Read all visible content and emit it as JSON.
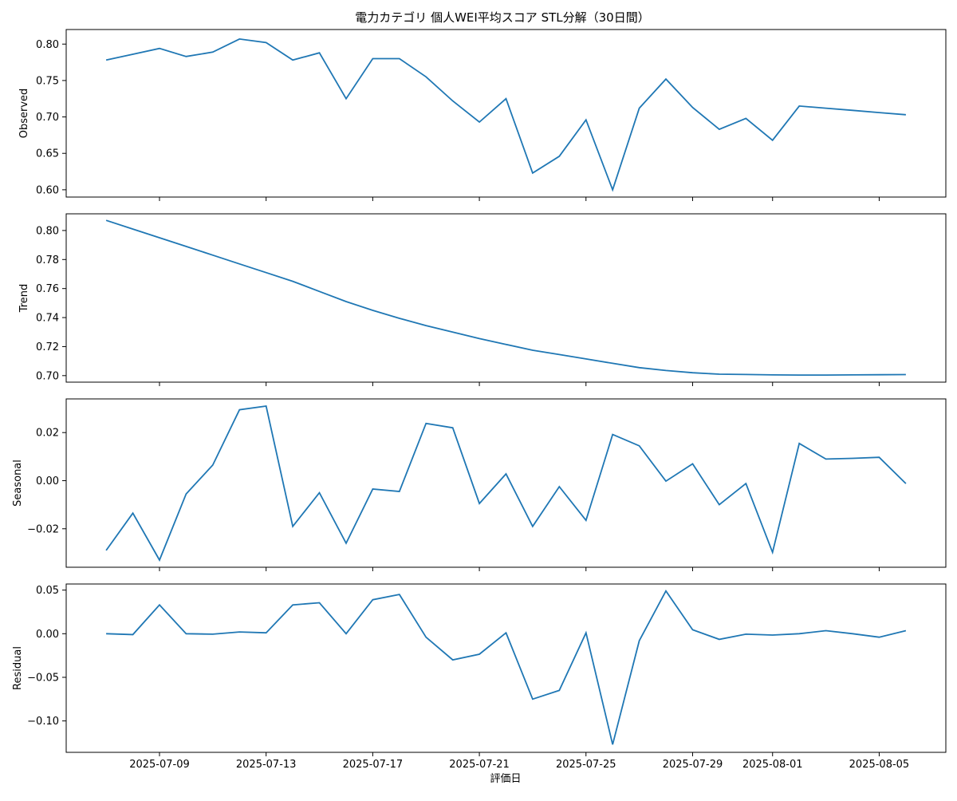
{
  "chart_data": {
    "type": "line",
    "title": "電力カテゴリ 個人WEI平均スコア STL分解（30日間）",
    "xlabel": "評価日",
    "x": [
      "2025-07-07",
      "2025-07-08",
      "2025-07-09",
      "2025-07-10",
      "2025-07-11",
      "2025-07-12",
      "2025-07-13",
      "2025-07-14",
      "2025-07-15",
      "2025-07-16",
      "2025-07-17",
      "2025-07-18",
      "2025-07-19",
      "2025-07-20",
      "2025-07-21",
      "2025-07-22",
      "2025-07-23",
      "2025-07-24",
      "2025-07-25",
      "2025-07-26",
      "2025-07-27",
      "2025-07-28",
      "2025-07-29",
      "2025-07-30",
      "2025-07-31",
      "2025-08-01",
      "2025-08-02",
      "2025-08-03",
      "2025-08-04",
      "2025-08-05",
      "2025-08-06"
    ],
    "x_ticks": [
      "2025-07-09",
      "2025-07-13",
      "2025-07-17",
      "2025-07-21",
      "2025-07-25",
      "2025-07-29",
      "2025-08-01",
      "2025-08-05"
    ],
    "panels": [
      {
        "ylabel": "Observed",
        "ylim": [
          0.59,
          0.82
        ],
        "yticks": [
          "0.60",
          "0.65",
          "0.70",
          "0.75",
          "0.80"
        ],
        "values": [
          0.778,
          0.786,
          0.794,
          0.783,
          0.789,
          0.807,
          0.802,
          0.778,
          0.788,
          0.725,
          0.78,
          0.78,
          0.755,
          0.722,
          0.693,
          0.725,
          0.623,
          0.646,
          0.696,
          0.6,
          0.712,
          0.752,
          0.713,
          0.683,
          0.698,
          0.668,
          0.715,
          0.712,
          0.709,
          0.706,
          0.703
        ]
      },
      {
        "ylabel": "Trend",
        "ylim": [
          0.6955,
          0.8115
        ],
        "yticks": [
          "0.70",
          "0.72",
          "0.74",
          "0.76",
          "0.78",
          "0.80"
        ],
        "values": [
          0.807,
          0.801,
          0.795,
          0.789,
          0.783,
          0.777,
          0.771,
          0.765,
          0.758,
          0.751,
          0.745,
          0.7395,
          0.7345,
          0.73,
          0.7255,
          0.7215,
          0.7175,
          0.7145,
          0.7115,
          0.7085,
          0.7055,
          0.7035,
          0.702,
          0.701,
          0.7008,
          0.7005,
          0.7004,
          0.7004,
          0.7005,
          0.7006,
          0.7007
        ]
      },
      {
        "ylabel": "Seasonal",
        "ylim": [
          -0.036,
          0.034
        ],
        "yticks": [
          "−0.02",
          "0.00",
          "0.02"
        ],
        "values": [
          -0.029,
          -0.0135,
          -0.033,
          -0.0055,
          0.0065,
          0.0295,
          0.031,
          -0.019,
          -0.005,
          -0.026,
          -0.0035,
          -0.0045,
          0.0238,
          0.022,
          -0.0095,
          0.0028,
          -0.019,
          -0.0025,
          -0.0165,
          0.0192,
          0.0145,
          -0.0002,
          0.007,
          -0.01,
          -0.0012,
          -0.0298,
          0.0155,
          0.009,
          0.0093,
          0.0097,
          -0.0012
        ]
      },
      {
        "ylabel": "Residual",
        "ylim": [
          -0.136,
          0.057
        ],
        "yticks": [
          "−0.10",
          "−0.05",
          "0.00",
          "0.05"
        ],
        "values": [
          0.0,
          -0.001,
          0.033,
          0.0,
          -0.0005,
          0.002,
          0.001,
          0.033,
          0.0355,
          0.0,
          0.039,
          0.045,
          -0.004,
          -0.03,
          -0.0235,
          0.001,
          -0.075,
          -0.065,
          0.001,
          -0.127,
          -0.008,
          0.049,
          0.0045,
          -0.0065,
          -0.0005,
          -0.0015,
          0.0,
          0.0035,
          0.0,
          -0.004,
          0.0035
        ]
      }
    ]
  }
}
